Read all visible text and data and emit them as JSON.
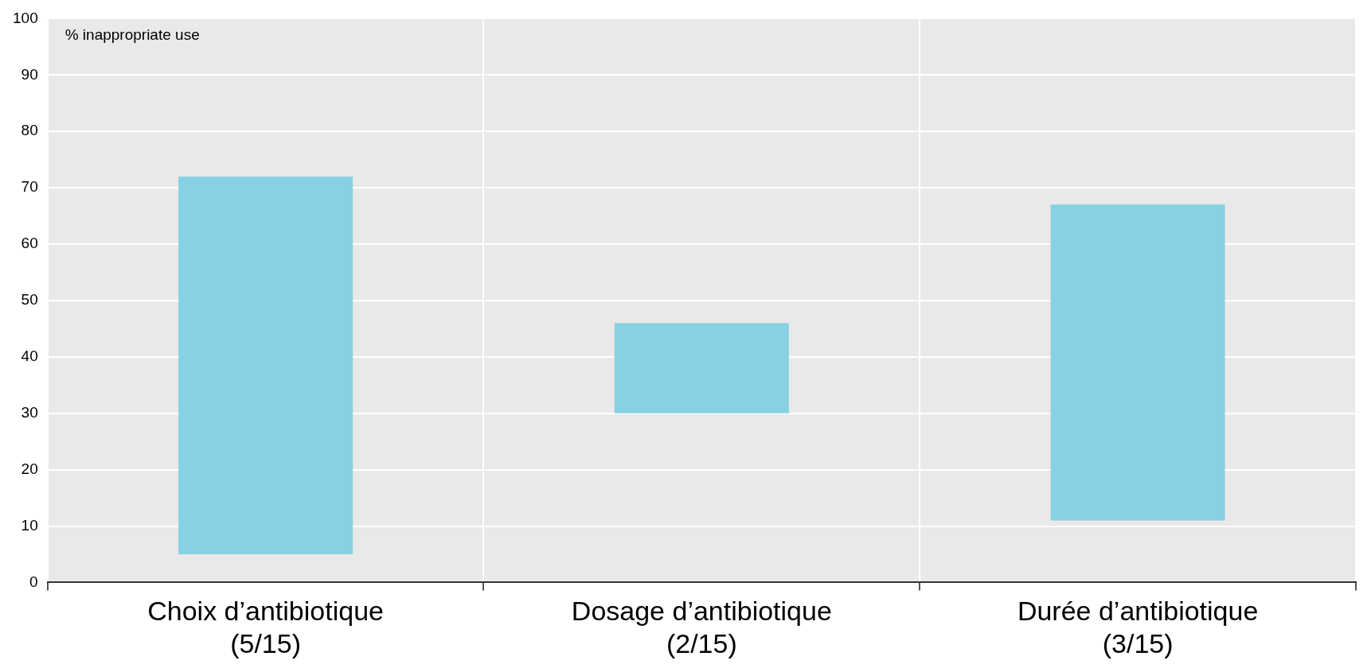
{
  "chart_data": {
    "type": "bar",
    "categories": [
      "Choix d’antibiotique (5/15)",
      "Dosage d’antibiotique (2/15)",
      "Durée d’antibiotique (3/15)"
    ],
    "values": [
      67,
      16,
      56
    ],
    "base": [
      5,
      30,
      11
    ],
    "color": "#87d1e4",
    "ylim": [
      0,
      100
    ],
    "yticks": [
      0,
      10,
      20,
      30,
      40,
      50,
      60,
      70,
      80,
      90,
      100
    ],
    "grid": true,
    "legend": false,
    "annotations": [
      "% inappropriate use"
    ]
  }
}
